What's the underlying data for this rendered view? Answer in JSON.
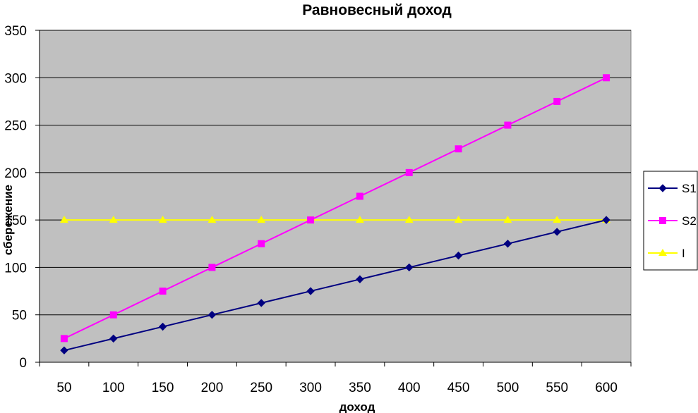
{
  "chart_data": {
    "type": "line",
    "title": "Равновесный доход",
    "xlabel": "доход",
    "ylabel": "сбережение",
    "categories": [
      "50",
      "100",
      "150",
      "200",
      "250",
      "300",
      "350",
      "400",
      "450",
      "500",
      "550",
      "600"
    ],
    "ylim": [
      0,
      350
    ],
    "yticks": [
      "0",
      "50",
      "100",
      "150",
      "200",
      "250",
      "300",
      "350"
    ],
    "grid": true,
    "legend_position": "right",
    "plot_background": "#c0c0c0",
    "series": [
      {
        "name": "S1",
        "color": "#000080",
        "marker": "diamond",
        "values": [
          12.5,
          25,
          37.5,
          50,
          62.5,
          75,
          87.5,
          100,
          112.5,
          125,
          137.5,
          150
        ]
      },
      {
        "name": "S2",
        "color": "#ff00ff",
        "marker": "square",
        "values": [
          25,
          50,
          75,
          100,
          125,
          150,
          175,
          200,
          225,
          250,
          275,
          300
        ]
      },
      {
        "name": "I",
        "color": "#ffff00",
        "marker": "triangle",
        "values": [
          150,
          150,
          150,
          150,
          150,
          150,
          150,
          150,
          150,
          150,
          150,
          150
        ]
      }
    ]
  }
}
